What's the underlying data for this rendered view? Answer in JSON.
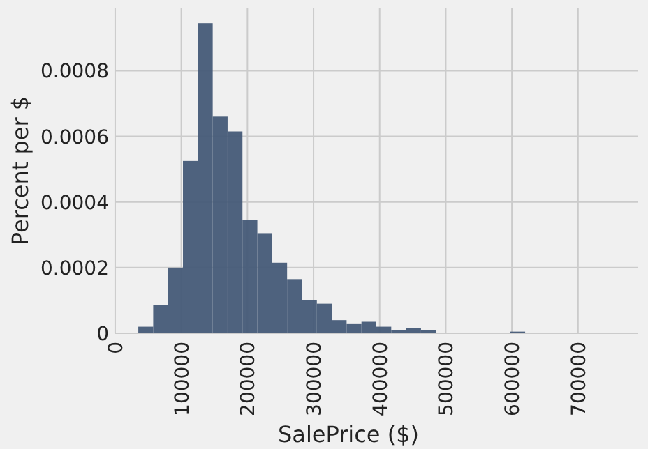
{
  "chart_data": {
    "type": "histogram",
    "xlabel": "SalePrice ($)",
    "ylabel": "Percent per $",
    "color": "#455a77",
    "bins": [
      35000,
      57500,
      80000,
      102500,
      125000,
      147500,
      170000,
      192500,
      215000,
      237500,
      260000,
      282500,
      305000,
      327500,
      350000,
      372500,
      395000,
      417500,
      440000,
      462500,
      485000,
      507500,
      530000,
      552500,
      575000,
      597500,
      620000,
      642500,
      665000,
      687500,
      710000,
      732500,
      755000
    ],
    "values": [
      2e-05,
      8.5e-05,
      0.0002,
      0.000525,
      0.000945,
      0.00066,
      0.000615,
      0.000345,
      0.000305,
      0.000215,
      0.000165,
      0.0001,
      9e-05,
      4e-05,
      3e-05,
      3.5e-05,
      2e-05,
      1e-05,
      1.5e-05,
      1e-05,
      0,
      0,
      0,
      0,
      0,
      5e-06,
      0,
      0,
      0,
      0,
      0,
      0
    ],
    "xlim": [
      -1000,
      791000
    ],
    "ylim": [
      0,
      0.00099
    ],
    "xticks": [
      0,
      100000,
      200000,
      300000,
      400000,
      500000,
      600000,
      700000
    ],
    "yticks": [
      0,
      0.0002,
      0.0004,
      0.0006,
      0.0008
    ],
    "grid": true
  }
}
